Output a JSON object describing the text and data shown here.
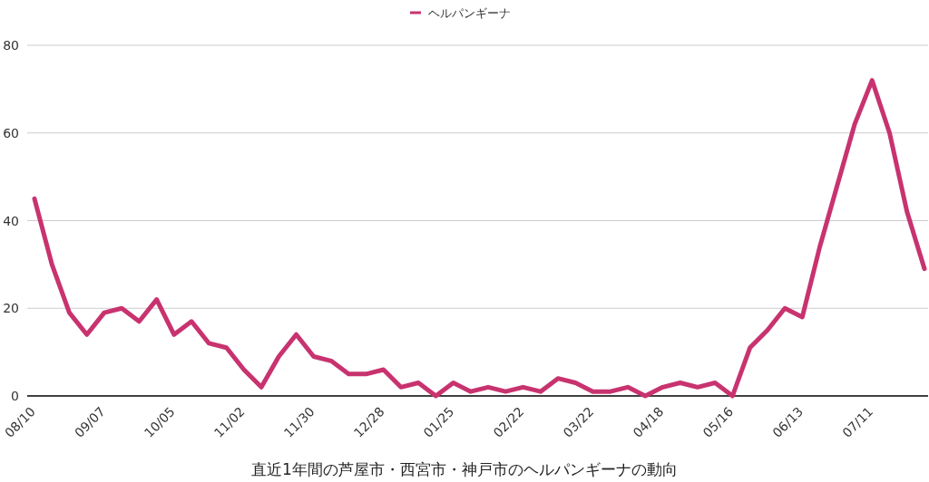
{
  "chart_data": {
    "type": "line",
    "xlabel": "直近1年間の芦屋市・西宮市・神戸市のヘルパンギーナの動向",
    "categories": [
      "08/10",
      null,
      null,
      null,
      "09/07",
      null,
      null,
      null,
      "10/05",
      null,
      null,
      null,
      "11/02",
      null,
      null,
      null,
      "11/30",
      null,
      null,
      null,
      "12/28",
      null,
      null,
      null,
      "01/25",
      null,
      null,
      null,
      "02/22",
      null,
      null,
      null,
      "03/22",
      null,
      null,
      null,
      "04/18",
      null,
      null,
      null,
      "05/16",
      null,
      null,
      null,
      "06/13",
      null,
      null,
      null,
      "07/11",
      null,
      null,
      null
    ],
    "series": [
      {
        "name": "ヘルパンギーナ",
        "color": "#c8336f",
        "values": [
          45,
          30,
          19,
          14,
          19,
          20,
          17,
          22,
          14,
          17,
          12,
          11,
          6,
          2,
          9,
          14,
          9,
          8,
          5,
          5,
          6,
          2,
          3,
          0,
          3,
          1,
          2,
          1,
          2,
          1,
          4,
          3,
          1,
          1,
          2,
          0,
          2,
          3,
          2,
          3,
          0,
          11,
          15,
          20,
          18,
          34,
          48,
          62,
          72,
          60,
          42,
          29
        ]
      }
    ],
    "ylim": [
      0,
      80
    ],
    "yticks": [
      0,
      20,
      40,
      60,
      80
    ],
    "grid": "y",
    "legend": "top"
  }
}
